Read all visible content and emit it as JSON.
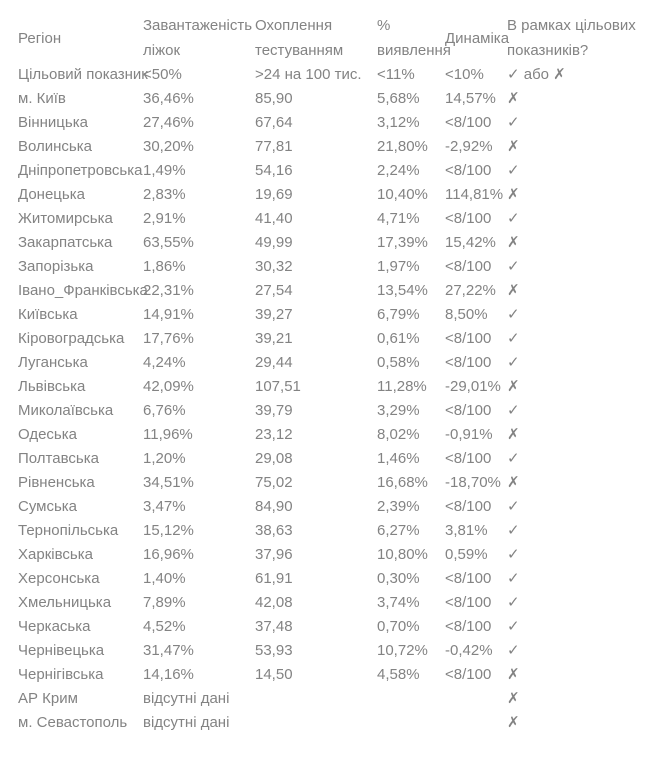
{
  "header": {
    "region": "Регіон",
    "beds": [
      "Завантаженість",
      "ліжок"
    ],
    "testing": [
      "Охоплення",
      "тестуванням"
    ],
    "detection": [
      "%",
      "виявлення"
    ],
    "dynamics": "Динаміка",
    "target": [
      "В рамках цільових",
      "показників?"
    ]
  },
  "target_row": {
    "region": "Цільовий показник",
    "beds": "<50%",
    "testing": ">24 на 100 тис.",
    "detection": "<11%",
    "dynamics": "<10%",
    "status": "✓ або ✗"
  },
  "status_symbols": {
    "pass": "✓",
    "fail": "✗"
  },
  "text_color": "#838383",
  "rows": [
    {
      "region": "м. Київ",
      "beds": "36,46%",
      "testing": "85,90",
      "detection": "5,68%",
      "dynamics": "14,57%",
      "status": "✗"
    },
    {
      "region": "Вінницька",
      "beds": "27,46%",
      "testing": "67,64",
      "detection": "3,12%",
      "dynamics": "<8/100",
      "status": "✓"
    },
    {
      "region": "Волинська",
      "beds": "30,20%",
      "testing": "77,81",
      "detection": "21,80%",
      "dynamics": "-2,92%",
      "status": "✗"
    },
    {
      "region": "Дніпропетровська",
      "beds": "1,49%",
      "testing": "54,16",
      "detection": "2,24%",
      "dynamics": "<8/100",
      "status": "✓"
    },
    {
      "region": "Донецька",
      "beds": "2,83%",
      "testing": "19,69",
      "detection": "10,40%",
      "dynamics": "114,81%",
      "status": "✗"
    },
    {
      "region": "Житомирська",
      "beds": "2,91%",
      "testing": "41,40",
      "detection": "4,71%",
      "dynamics": "<8/100",
      "status": "✓"
    },
    {
      "region": "Закарпатська",
      "beds": "63,55%",
      "testing": "49,99",
      "detection": "17,39%",
      "dynamics": "15,42%",
      "status": "✗"
    },
    {
      "region": "Запорізька",
      "beds": "1,86%",
      "testing": "30,32",
      "detection": "1,97%",
      "dynamics": "<8/100",
      "status": "✓"
    },
    {
      "region": "Івано_Франківська",
      "beds": "22,31%",
      "testing": "27,54",
      "detection": "13,54%",
      "dynamics": "27,22%",
      "status": "✗"
    },
    {
      "region": "Київська",
      "beds": "14,91%",
      "testing": "39,27",
      "detection": "6,79%",
      "dynamics": "8,50%",
      "status": "✓"
    },
    {
      "region": "Кіровоградська",
      "beds": "17,76%",
      "testing": "39,21",
      "detection": "0,61%",
      "dynamics": "<8/100",
      "status": "✓"
    },
    {
      "region": "Луганська",
      "beds": "4,24%",
      "testing": "29,44",
      "detection": "0,58%",
      "dynamics": "<8/100",
      "status": "✓"
    },
    {
      "region": "Львівська",
      "beds": "42,09%",
      "testing": "107,51",
      "detection": "11,28%",
      "dynamics": "-29,01%",
      "status": "✗"
    },
    {
      "region": "Миколаївська",
      "beds": "6,76%",
      "testing": "39,79",
      "detection": "3,29%",
      "dynamics": "<8/100",
      "status": "✓"
    },
    {
      "region": "Одеська",
      "beds": "11,96%",
      "testing": "23,12",
      "detection": "8,02%",
      "dynamics": "-0,91%",
      "status": "✗"
    },
    {
      "region": "Полтавська",
      "beds": "1,20%",
      "testing": "29,08",
      "detection": "1,46%",
      "dynamics": "<8/100",
      "status": "✓"
    },
    {
      "region": "Рівненська",
      "beds": "34,51%",
      "testing": "75,02",
      "detection": "16,68%",
      "dynamics": "-18,70%",
      "status": "✗"
    },
    {
      "region": "Сумська",
      "beds": "3,47%",
      "testing": "84,90",
      "detection": "2,39%",
      "dynamics": "<8/100",
      "status": "✓"
    },
    {
      "region": "Тернопільська",
      "beds": "15,12%",
      "testing": "38,63",
      "detection": "6,27%",
      "dynamics": "3,81%",
      "status": "✓"
    },
    {
      "region": "Харківська",
      "beds": "16,96%",
      "testing": "37,96",
      "detection": "10,80%",
      "dynamics": "0,59%",
      "status": "✓"
    },
    {
      "region": "Херсонська",
      "beds": "1,40%",
      "testing": "61,91",
      "detection": "0,30%",
      "dynamics": "<8/100",
      "status": "✓"
    },
    {
      "region": "Хмельницька",
      "beds": "7,89%",
      "testing": "42,08",
      "detection": "3,74%",
      "dynamics": "<8/100",
      "status": "✓"
    },
    {
      "region": "Черкаська",
      "beds": "4,52%",
      "testing": "37,48",
      "detection": "0,70%",
      "dynamics": "<8/100",
      "status": "✓"
    },
    {
      "region": "Чернівецька",
      "beds": "31,47%",
      "testing": "53,93",
      "detection": "10,72%",
      "dynamics": "-0,42%",
      "status": "✓"
    },
    {
      "region": "Чернігівська",
      "beds": "14,16%",
      "testing": "14,50",
      "detection": "4,58%",
      "dynamics": "<8/100",
      "status": "✗"
    },
    {
      "region": "АР Крим",
      "beds": "відсутні дані",
      "testing": "",
      "detection": "",
      "dynamics": "",
      "status": "✗"
    },
    {
      "region": "м. Севастополь",
      "beds": "відсутні дані",
      "testing": "",
      "detection": "",
      "dynamics": "",
      "status": "✗"
    }
  ]
}
